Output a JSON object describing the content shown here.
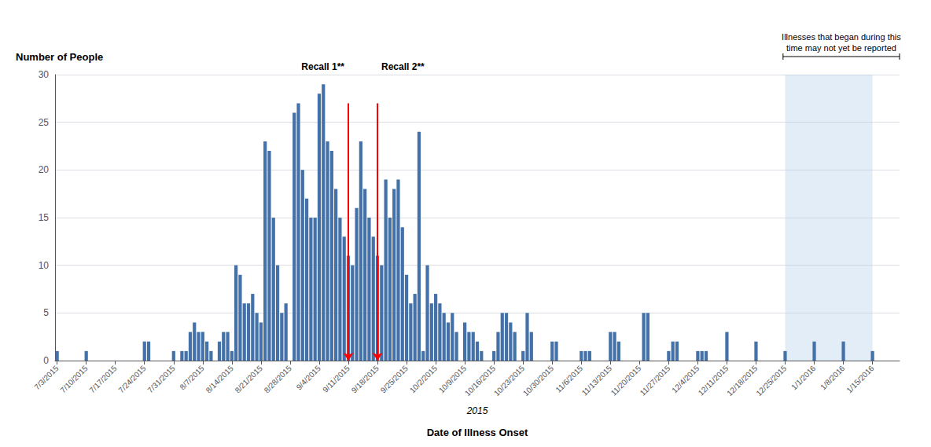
{
  "chart_data": {
    "type": "bar",
    "ylabel": "Number of People",
    "xlabel": "Date of Illness Onset",
    "year_label": "2015",
    "color": "#4472A8",
    "ylim": [
      0,
      30
    ],
    "yticks": [
      0,
      5,
      10,
      15,
      20,
      25,
      30
    ],
    "grid": true,
    "categories": [
      "7/3/2015",
      null,
      null,
      null,
      null,
      null,
      null,
      "7/10/2015",
      null,
      null,
      null,
      null,
      null,
      null,
      "7/17/2015",
      null,
      null,
      null,
      null,
      null,
      null,
      "7/24/2015",
      null,
      null,
      null,
      null,
      null,
      null,
      "7/31/2015",
      null,
      null,
      null,
      null,
      null,
      null,
      "8/7/2015",
      null,
      null,
      null,
      null,
      null,
      null,
      "8/14/2015",
      null,
      null,
      null,
      null,
      null,
      null,
      "8/21/2015",
      null,
      null,
      null,
      null,
      null,
      null,
      "8/28/2015",
      null,
      null,
      null,
      null,
      null,
      null,
      "9/4/2015",
      null,
      null,
      null,
      null,
      null,
      null,
      "9/11/2015",
      null,
      null,
      null,
      null,
      null,
      null,
      "9/18/2015",
      null,
      null,
      null,
      null,
      null,
      null,
      "9/25/2015",
      null,
      null,
      null,
      null,
      null,
      null,
      "10/2/2015",
      null,
      null,
      null,
      null,
      null,
      null,
      "10/9/2015",
      null,
      null,
      null,
      null,
      null,
      null,
      "10/16/2015",
      null,
      null,
      null,
      null,
      null,
      null,
      "10/23/2015",
      null,
      null,
      null,
      null,
      null,
      null,
      "10/30/2015",
      null,
      null,
      null,
      null,
      null,
      null,
      "11/6/2015",
      null,
      null,
      null,
      null,
      null,
      null,
      "11/13/2015",
      null,
      null,
      null,
      null,
      null,
      null,
      "11/20/2015",
      null,
      null,
      null,
      null,
      null,
      null,
      "11/27/2015",
      null,
      null,
      null,
      null,
      null,
      null,
      "12/4/2015",
      null,
      null,
      null,
      null,
      null,
      null,
      "12/11/2015",
      null,
      null,
      null,
      null,
      null,
      null,
      "12/18/2015",
      null,
      null,
      null,
      null,
      null,
      null,
      "12/25/2015",
      null,
      null,
      null,
      null,
      null,
      null,
      "1/1/2016",
      null,
      null,
      null,
      null,
      null,
      null,
      "1/8/2016",
      null,
      null,
      null,
      null,
      null,
      null,
      "1/15/2016",
      null,
      null,
      null,
      null,
      null,
      null
    ],
    "values": [
      1,
      0,
      0,
      0,
      0,
      0,
      0,
      1,
      0,
      0,
      0,
      0,
      0,
      0,
      0,
      0,
      0,
      0,
      0,
      0,
      0,
      2,
      2,
      0,
      0,
      0,
      0,
      0,
      1,
      0,
      1,
      1,
      3,
      4,
      3,
      3,
      2,
      1,
      0,
      2,
      3,
      3,
      1,
      10,
      9,
      6,
      6,
      7,
      5,
      4,
      23,
      22,
      15,
      10,
      5,
      6,
      0,
      26,
      27,
      20,
      17,
      15,
      15,
      28,
      29,
      23,
      22,
      18,
      15,
      13,
      11,
      10,
      16,
      23,
      18,
      15,
      13,
      11,
      10,
      19,
      15,
      18,
      19,
      14,
      9,
      6,
      7,
      24,
      1,
      10,
      6,
      7,
      6,
      5,
      4,
      5,
      3,
      0,
      4,
      3,
      3,
      2,
      1,
      0,
      0,
      1,
      3,
      5,
      5,
      4,
      3,
      0,
      1,
      5,
      3,
      0,
      0,
      0,
      0,
      2,
      2,
      0,
      0,
      0,
      0,
      0,
      1,
      1,
      1,
      0,
      0,
      0,
      0,
      3,
      3,
      2,
      0,
      0,
      0,
      0,
      0,
      5,
      5,
      0,
      0,
      0,
      0,
      1,
      2,
      2,
      0,
      0,
      0,
      0,
      1,
      1,
      1,
      0,
      0,
      0,
      0,
      3,
      0,
      0,
      0,
      0,
      0,
      0,
      2,
      0,
      0,
      0,
      0,
      0,
      0,
      1,
      0,
      0,
      0,
      0,
      0,
      0,
      2,
      0,
      0,
      0,
      0,
      0,
      0,
      2,
      0,
      0,
      0,
      0,
      0,
      0,
      1,
      0,
      0,
      0,
      0,
      0,
      0
    ],
    "annotations": [
      {
        "text": "Recall 1**",
        "x": "9/11/2015",
        "color": "red"
      },
      {
        "text": "Recall 2**",
        "x": "9/18/2015",
        "color": "red"
      },
      {
        "text": "Illnesses that began during this\ntime may not yet be reported",
        "x_from": "12/25/2015"
      }
    ]
  }
}
